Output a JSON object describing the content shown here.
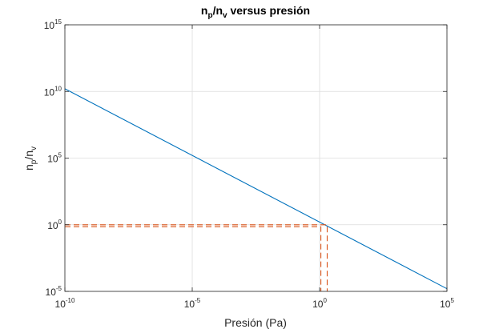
{
  "chart_data": {
    "type": "line",
    "title": {
      "base1": "n",
      "sub1": "p",
      "slash": "/n",
      "sub2": "v",
      "rest": " versus presión"
    },
    "xlabel": "Presión (Pa)",
    "ylabel": {
      "base1": "n",
      "sub1": "p",
      "slash": "/n",
      "sub2": "v"
    },
    "xscale": "log",
    "yscale": "log",
    "xlim_exponent": [
      -10,
      5
    ],
    "ylim_exponent": [
      -5,
      15
    ],
    "x_ticks": [
      {
        "base": "10",
        "exp": "-10",
        "e": -10
      },
      {
        "base": "10",
        "exp": "-5",
        "e": -5
      },
      {
        "base": "10",
        "exp": "0",
        "e": 0
      },
      {
        "base": "10",
        "exp": "5",
        "e": 5
      }
    ],
    "y_ticks": [
      {
        "base": "10",
        "exp": "-5",
        "e": -5
      },
      {
        "base": "10",
        "exp": "0",
        "e": 0
      },
      {
        "base": "10",
        "exp": "5",
        "e": 5
      },
      {
        "base": "10",
        "exp": "10",
        "e": 10
      },
      {
        "base": "10",
        "exp": "15",
        "e": 15
      }
    ],
    "grid": true,
    "series": [
      {
        "style": "solid",
        "color": "#0072bd",
        "x_exponent": [
          -10,
          5
        ],
        "y_exponent": [
          10.2,
          -4.8
        ]
      },
      {
        "style": "dashed",
        "color": "#d95319",
        "x_exponent": [
          -10,
          0.05,
          0.05
        ],
        "y_exponent": [
          -0.15,
          -0.15,
          -5
        ]
      },
      {
        "style": "dashed",
        "color": "#d95319",
        "x_exponent": [
          -10,
          0.3,
          0.3
        ],
        "y_exponent": [
          0,
          0,
          -5
        ]
      }
    ]
  }
}
